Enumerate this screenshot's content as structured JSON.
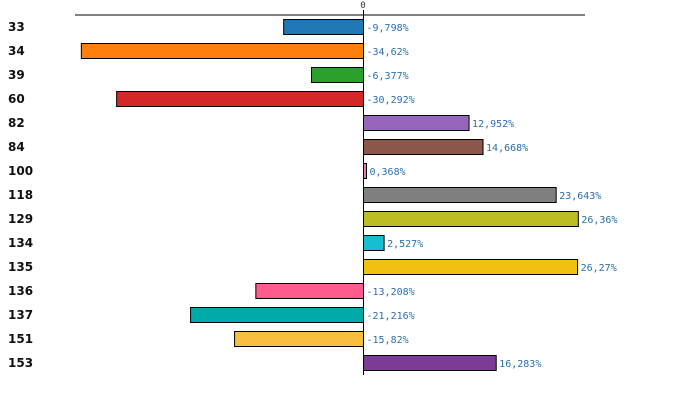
{
  "chart_data": {
    "type": "bar",
    "orientation": "horizontal",
    "title": "",
    "xlabel": "",
    "ylabel": "",
    "zero_tick_label": "0",
    "xlim": [
      -40.56,
      38.64
    ],
    "grid": false,
    "categories": [
      "33",
      "34",
      "39",
      "60",
      "82",
      "84",
      "100",
      "118",
      "129",
      "134",
      "135",
      "136",
      "137",
      "151",
      "153"
    ],
    "values": [
      -9.798,
      -34.62,
      -6.377,
      -30.292,
      12.952,
      14.668,
      0.368,
      23.643,
      26.36,
      2.527,
      26.27,
      -13.208,
      -21.216,
      -15.82,
      16.283
    ],
    "value_labels": [
      "-9,798%",
      "-34,62%",
      "-6,377%",
      "-30,292%",
      "12,952%",
      "14,668%",
      "0,368%",
      "23,643%",
      "26,36%",
      "2,527%",
      "26,27%",
      "-13,208%",
      "-21,216%",
      "-15,82%",
      "16,283%"
    ],
    "colors": [
      "#1f77b4",
      "#ff7f0e",
      "#2ca02c",
      "#d62728",
      "#9467bd",
      "#8c564b",
      "#e377c2",
      "#7f7f7f",
      "#bcbd22",
      "#17becf",
      "#f2c00f",
      "#ff5c8d",
      "#00aaa8",
      "#f9be3e",
      "#7b3b96"
    ],
    "highlight_category": "100",
    "highlight_color": "#dd0000",
    "label_color": "#111111",
    "value_label_color": "#2a6fb0"
  }
}
